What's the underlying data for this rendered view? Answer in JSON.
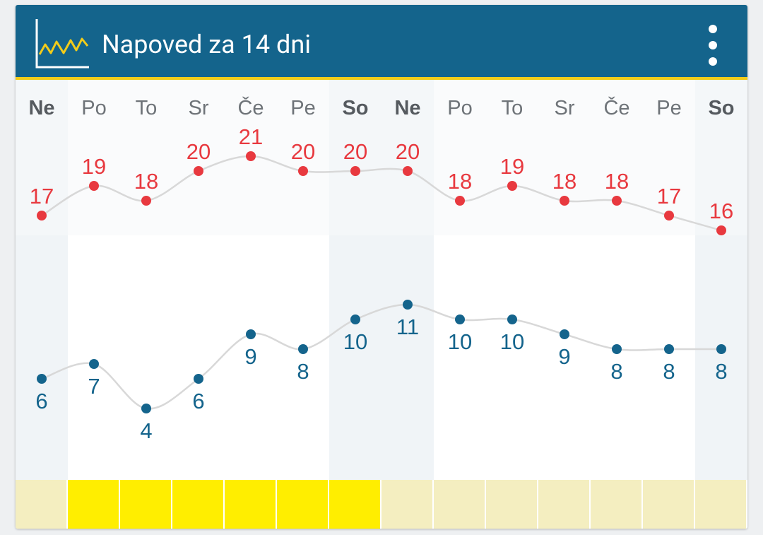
{
  "header": {
    "title": "Napoved za 14 dni",
    "icon": "line-chart-icon",
    "menu_icon": "more-vert-icon"
  },
  "colors": {
    "header_bg": "#14648c",
    "header_accent": "#f2cc1a",
    "max_temp": "#e8393f",
    "min_temp": "#14648c",
    "weekend_band": "#f0f4f7",
    "strip_active": "#ffee00",
    "strip_inactive": "#f4eec0"
  },
  "chart_data": {
    "type": "line",
    "categories": [
      "Ne",
      "Po",
      "To",
      "Sr",
      "Če",
      "Pe",
      "So",
      "Ne",
      "Po",
      "To",
      "Sr",
      "Če",
      "Pe",
      "So"
    ],
    "weekend": [
      true,
      false,
      false,
      false,
      false,
      false,
      true,
      true,
      false,
      false,
      false,
      false,
      false,
      true
    ],
    "series": [
      {
        "values": [
          17,
          19,
          18,
          20,
          21,
          20,
          20,
          20,
          18,
          19,
          18,
          18,
          17,
          16
        ]
      },
      {
        "values": [
          6,
          7,
          4,
          6,
          9,
          8,
          10,
          11,
          10,
          10,
          9,
          8,
          8,
          8
        ]
      }
    ],
    "ylim": [
      0,
      22
    ]
  },
  "strip": {
    "active": [
      false,
      true,
      true,
      true,
      true,
      true,
      true,
      false,
      false,
      false,
      false,
      false,
      false,
      false
    ]
  }
}
